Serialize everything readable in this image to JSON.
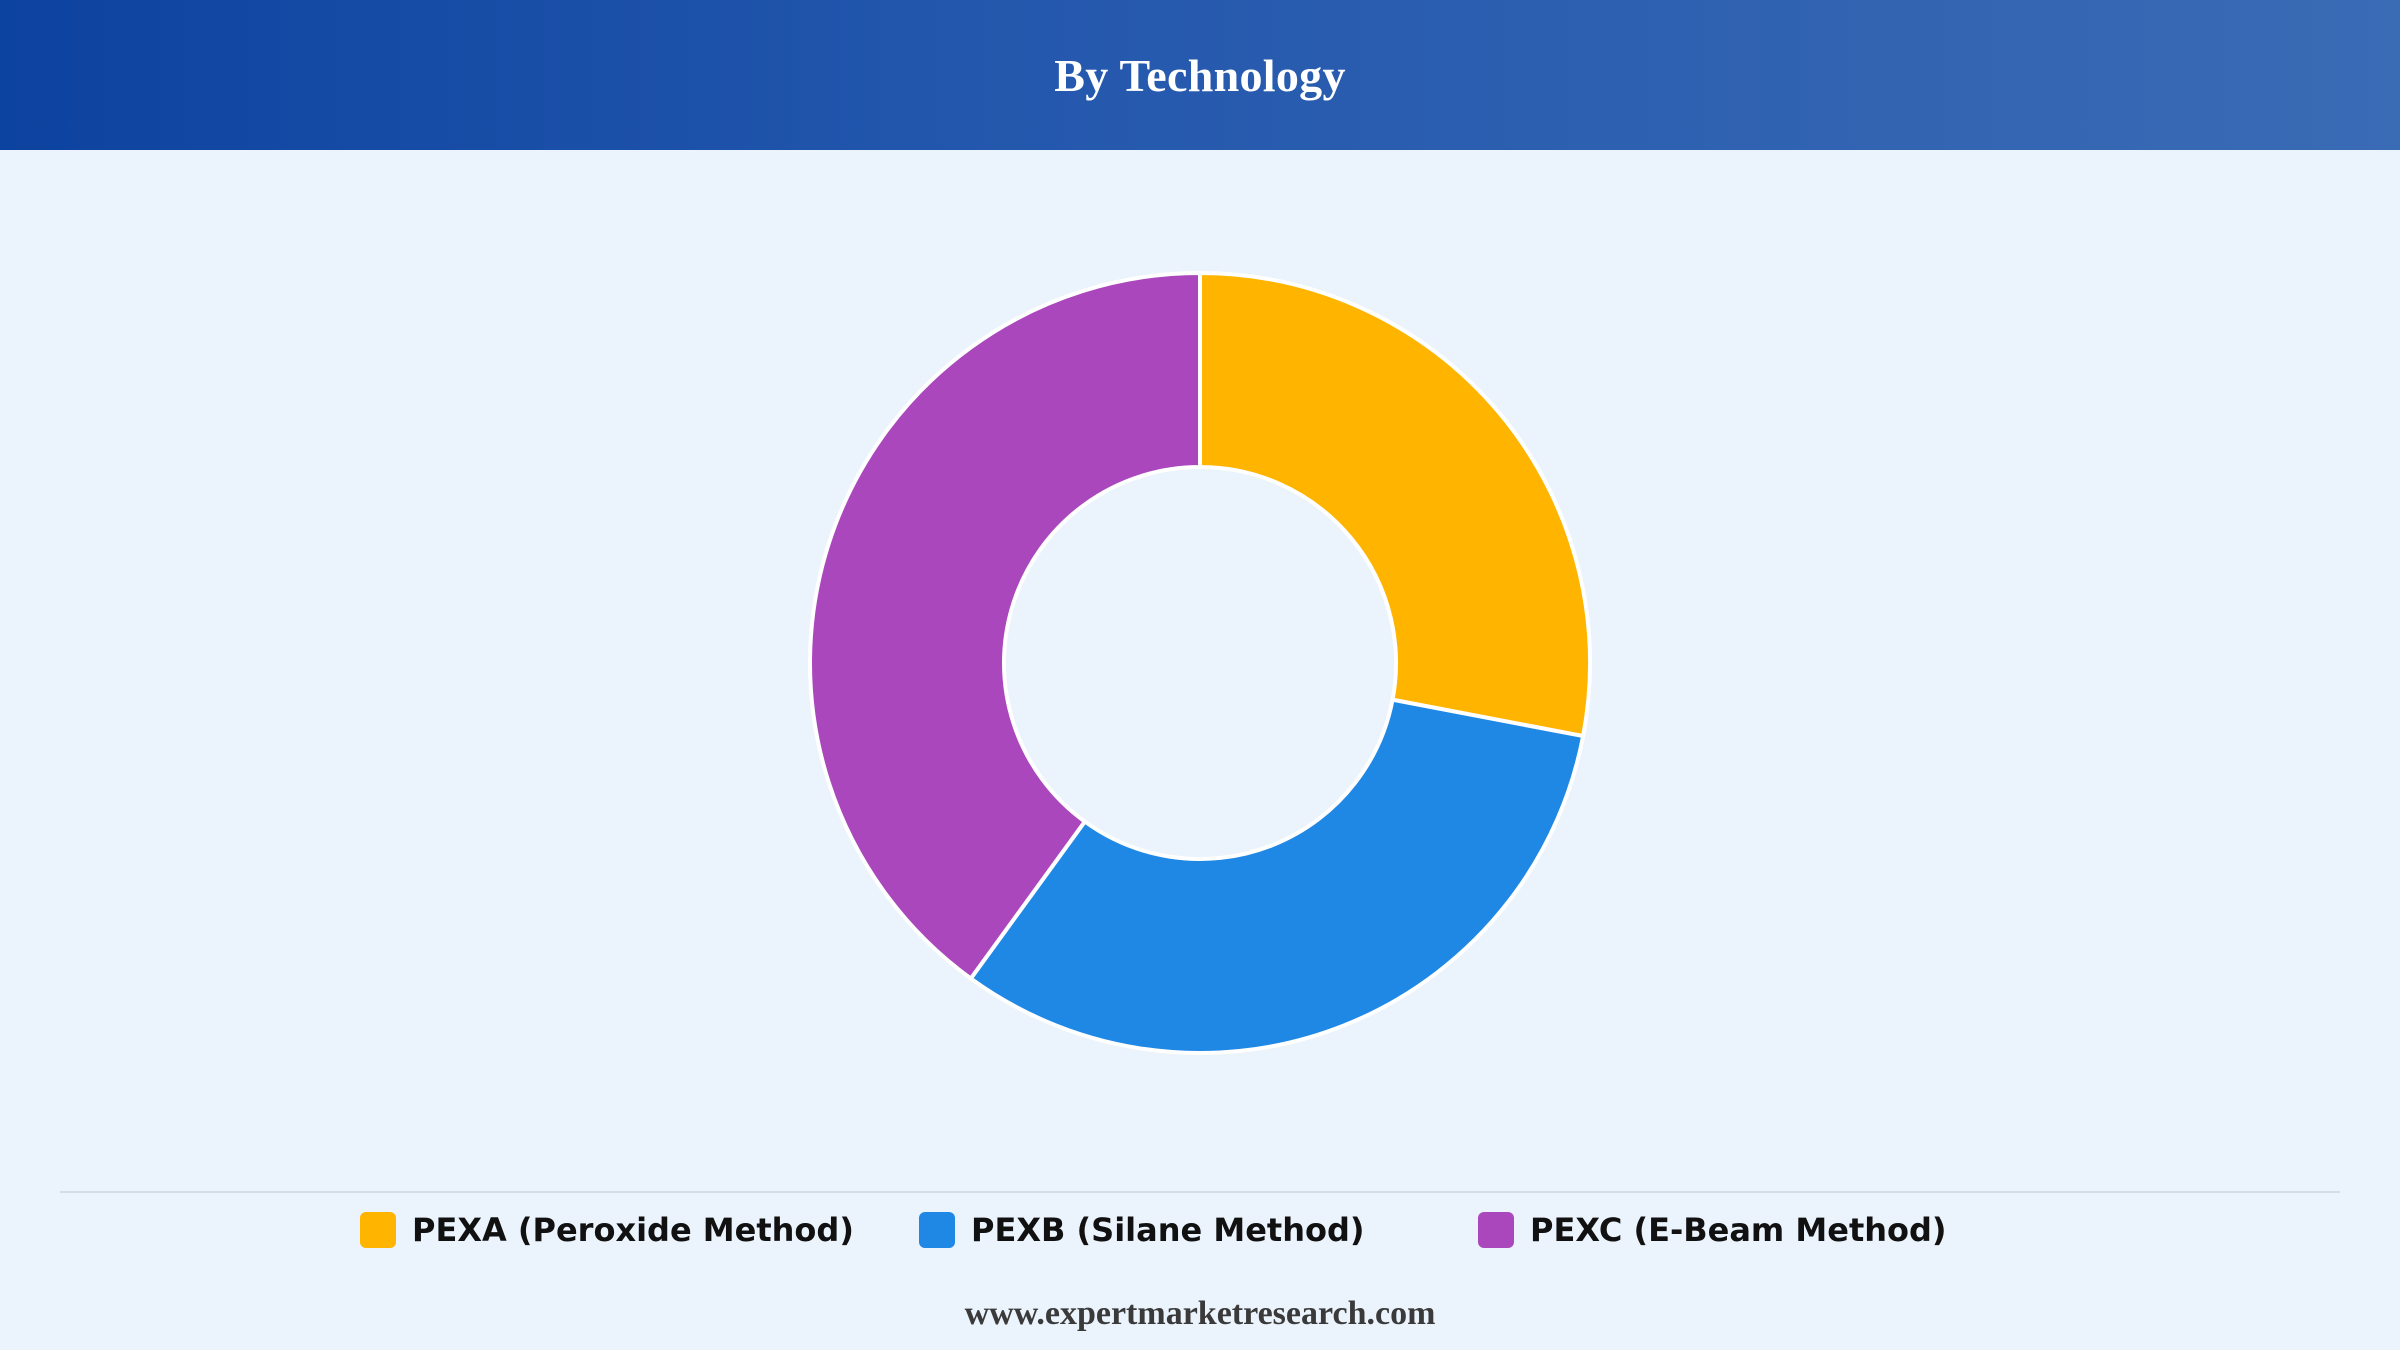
{
  "header": {
    "title": "By Technology"
  },
  "chart_data": {
    "type": "pie",
    "subtype": "donut",
    "title": "By Technology",
    "categories": [
      "PEXA (Peroxide Method)",
      "PEXB (Silane Method)",
      "PEXC (E-Beam Method)"
    ],
    "values": [
      28,
      32,
      40
    ],
    "unit": "%",
    "colors": [
      "#ffb400",
      "#1f88e5",
      "#ab47bc"
    ],
    "legend_position": "bottom"
  },
  "legend": {
    "items": [
      {
        "label": "PEXA (Peroxide Method)",
        "color": "#ffb400"
      },
      {
        "label": "PEXB (Silane Method)",
        "color": "#1f88e5"
      },
      {
        "label": "PEXC (E-Beam Method)",
        "color": "#ab47bc"
      }
    ]
  },
  "footer": {
    "website": "www.expertmarketresearch.com"
  },
  "colors": {
    "background": "#ebf3fc",
    "header_start": "#0d43a0",
    "header_end": "#3a6bb5",
    "slice_border": "#ffffff"
  }
}
